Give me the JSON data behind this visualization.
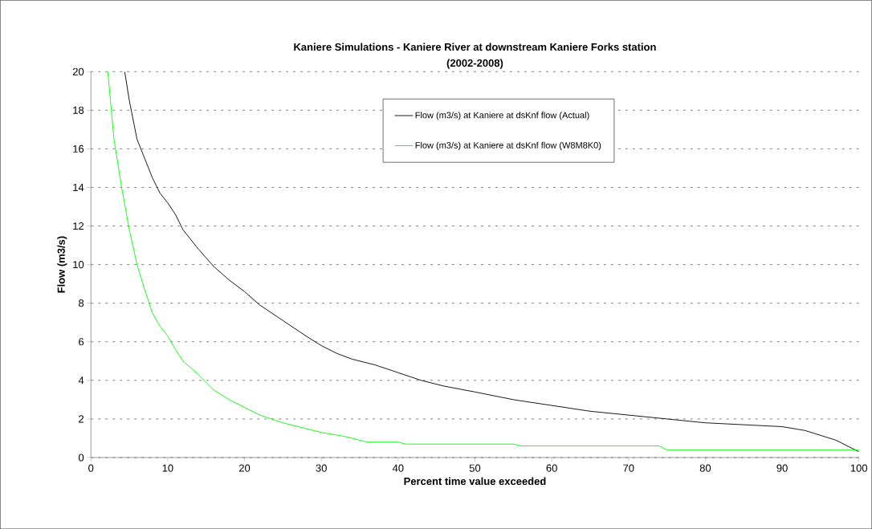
{
  "chart_data": {
    "type": "line",
    "title": "Kaniere Simulations - Kaniere River at downstream Kaniere Forks station",
    "subtitle": "(2002-2008)",
    "xlabel": "Percent time value exceeded",
    "ylabel": "Flow (m3/s)",
    "xlim": [
      0,
      100
    ],
    "ylim": [
      0,
      20
    ],
    "xticks": [
      0,
      10,
      20,
      30,
      40,
      50,
      60,
      70,
      80,
      90,
      100
    ],
    "yticks": [
      0,
      2,
      4,
      6,
      8,
      10,
      12,
      14,
      16,
      18,
      20
    ],
    "grid": "y",
    "legend": "top right",
    "marker": "none",
    "line_style": "solid",
    "series": [
      {
        "name": "Flow (m3/s) at Kaniere at dsKnf flow (Actual)",
        "color": "#000000",
        "x": [
          4.4,
          5,
          6,
          7,
          8,
          9,
          10,
          11,
          12,
          14,
          16,
          18,
          20,
          22,
          25,
          28,
          30,
          32,
          34,
          37,
          40,
          43,
          46,
          50,
          55,
          60,
          65,
          70,
          75,
          80,
          85,
          90,
          93,
          97,
          99,
          100
        ],
        "values": [
          20,
          18.5,
          16.5,
          15.5,
          14.5,
          13.7,
          13.2,
          12.6,
          11.8,
          10.8,
          9.9,
          9.2,
          8.6,
          7.9,
          7.1,
          6.3,
          5.8,
          5.4,
          5.1,
          4.8,
          4.4,
          4.0,
          3.7,
          3.4,
          3.0,
          2.7,
          2.4,
          2.2,
          2.0,
          1.8,
          1.7,
          1.6,
          1.4,
          0.9,
          0.5,
          0.3
        ]
      },
      {
        "name": "Flow (m3/s) at Kaniere at dsKnf flow (W8M8K0)",
        "color": "#00ff00",
        "x": [
          2.2,
          3,
          4,
          5,
          6,
          7,
          8,
          9,
          10,
          11,
          12,
          14,
          16,
          18,
          20,
          22,
          25,
          28,
          30,
          33,
          36,
          40,
          41,
          55,
          56,
          74,
          75,
          100
        ],
        "values": [
          20,
          16.5,
          14,
          11.8,
          10,
          8.7,
          7.5,
          6.8,
          6.3,
          5.6,
          5.0,
          4.3,
          3.5,
          3.0,
          2.6,
          2.2,
          1.8,
          1.5,
          1.3,
          1.1,
          0.8,
          0.8,
          0.7,
          0.7,
          0.6,
          0.6,
          0.4,
          0.4
        ]
      }
    ]
  }
}
